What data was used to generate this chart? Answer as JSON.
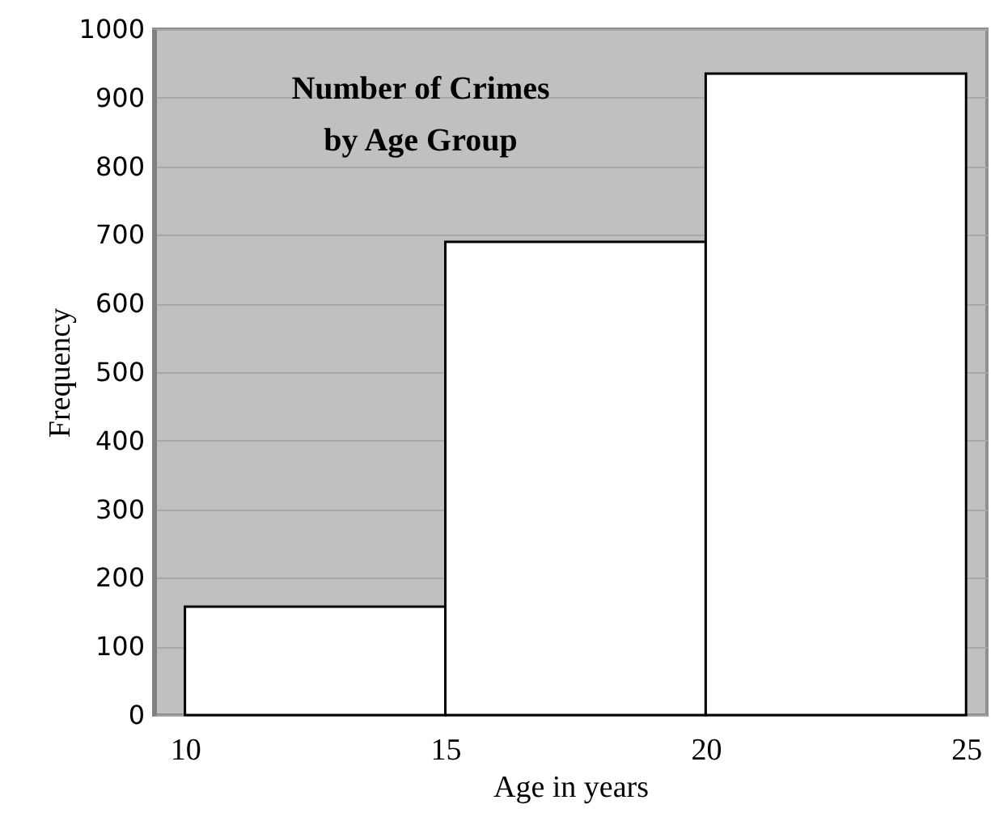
{
  "chart_data": {
    "type": "histogram",
    "title": "Number of Crimes\nby Age Group",
    "xlabel": "Age in years",
    "ylabel": "Frequency",
    "bins": [
      10,
      15,
      20,
      25
    ],
    "values": [
      158,
      690,
      935
    ],
    "color": "#ffffff",
    "xlim": [
      9.4,
      25.4
    ],
    "xticks": [
      10,
      15,
      20,
      25
    ],
    "ylim": [
      0,
      1000
    ],
    "yticks": [
      0,
      100,
      200,
      300,
      400,
      500,
      600,
      700,
      800,
      900,
      1000
    ],
    "grid": "y"
  }
}
